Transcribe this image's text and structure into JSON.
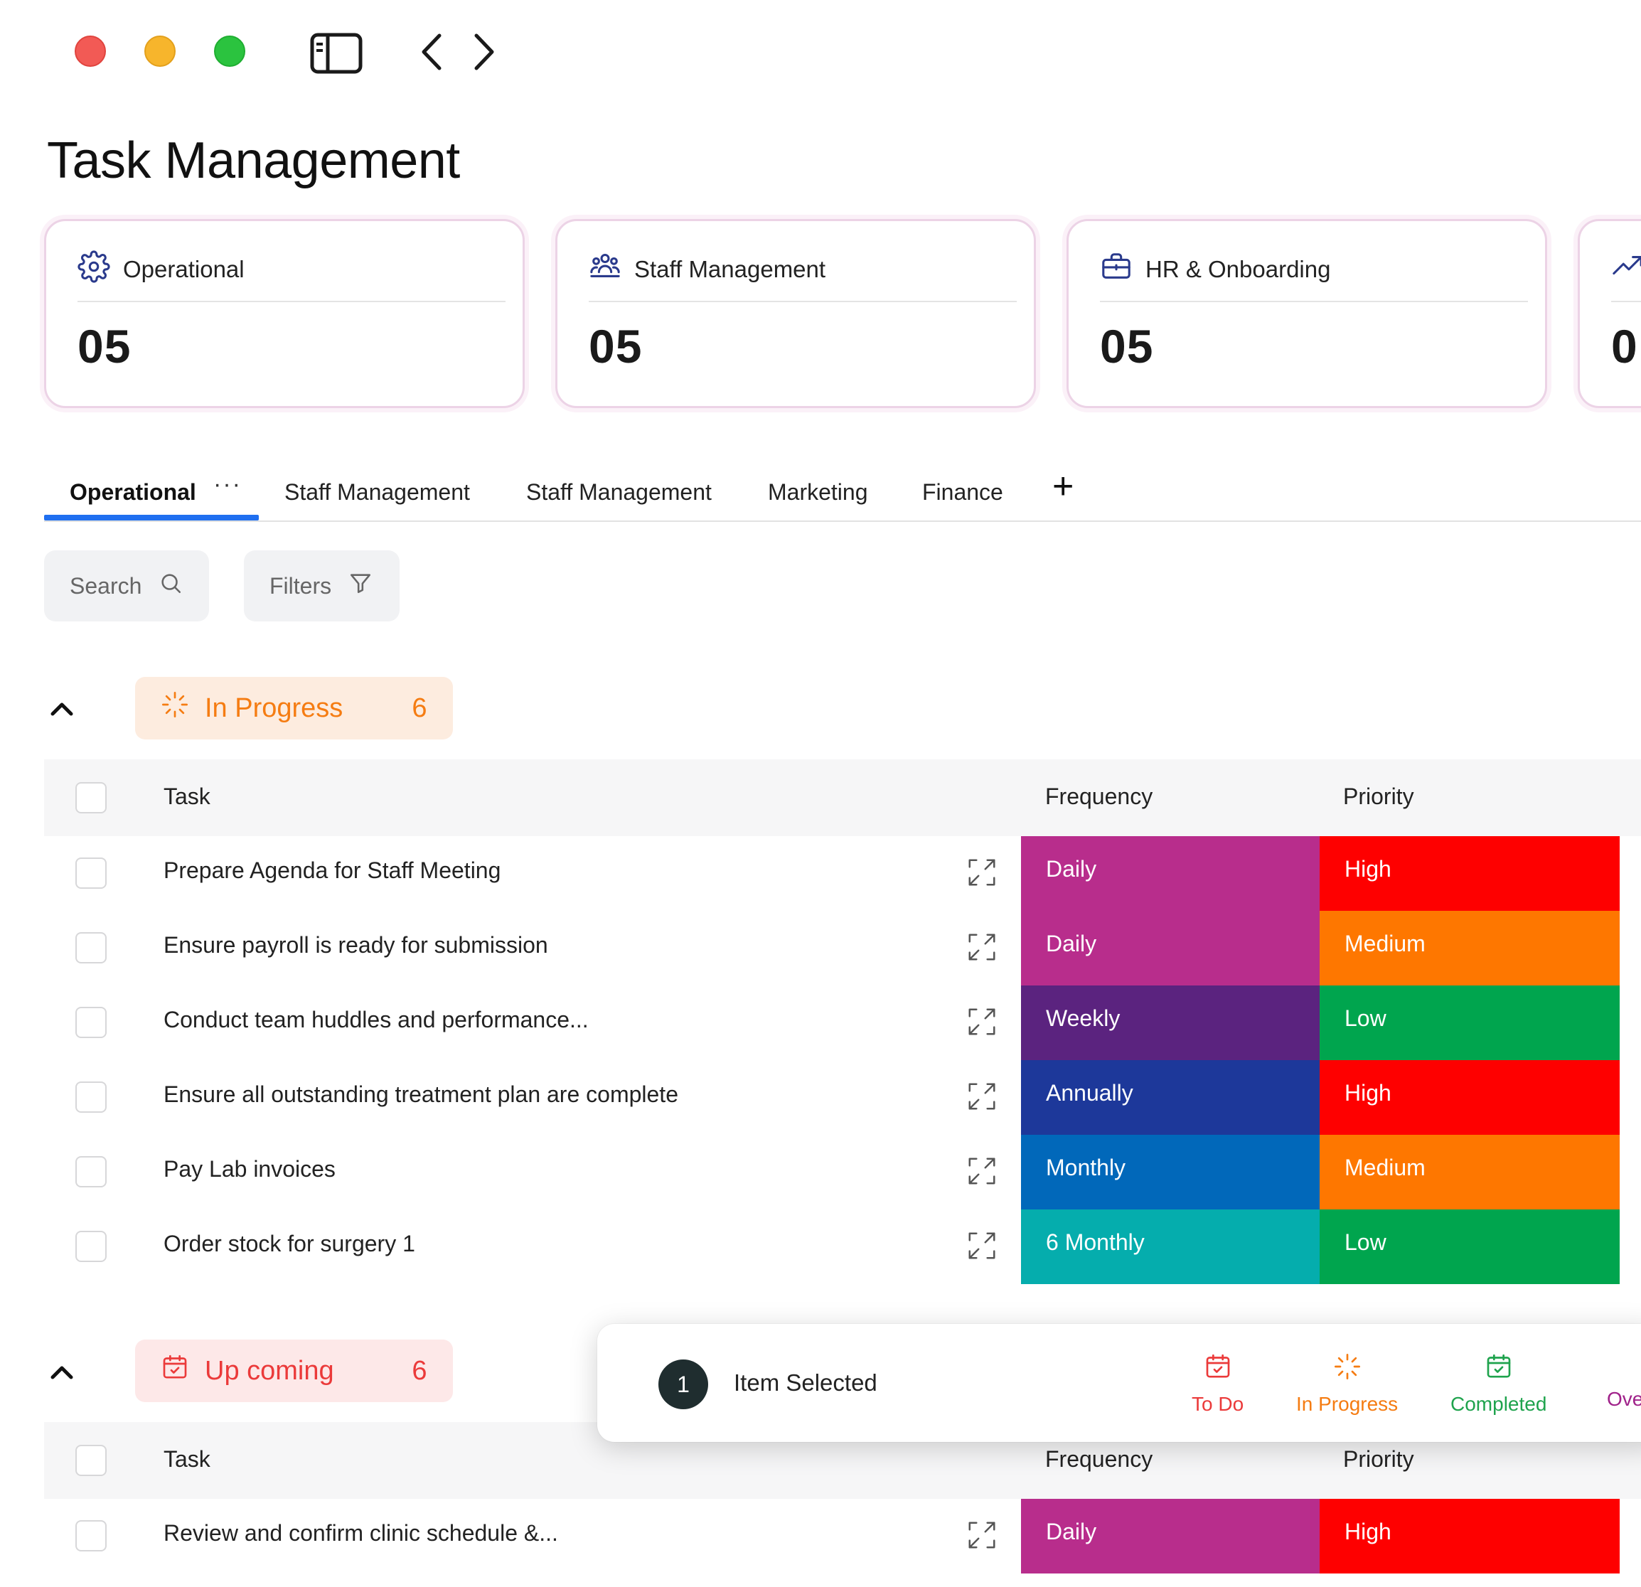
{
  "window": {
    "controls": [
      "close",
      "minimize",
      "maximize"
    ],
    "icons": [
      "sidebar-toggle-icon",
      "back-icon",
      "forward-icon"
    ]
  },
  "page": {
    "title": "Task Management"
  },
  "cards": [
    {
      "label": "Operational",
      "value": "05",
      "icon": "gear-icon"
    },
    {
      "label": "Staff Management",
      "value": "05",
      "icon": "people-icon"
    },
    {
      "label": "HR & Onboarding",
      "value": "05",
      "icon": "briefcase-icon"
    },
    {
      "label": "",
      "value": "0",
      "icon": "trending-up-icon"
    }
  ],
  "tabs": {
    "items": [
      "Operational",
      "Staff Management",
      "Staff Management",
      "Marketing",
      "Finance"
    ],
    "active_index": 0,
    "more": "···",
    "add": "+"
  },
  "controls": {
    "search": "Search",
    "filters": "Filters"
  },
  "columns": {
    "task": "Task",
    "frequency": "Frequency",
    "priority": "Priority"
  },
  "groups": [
    {
      "label": "In Progress",
      "count": "6",
      "rows": [
        {
          "task": "Prepare Agenda for Staff Meeting",
          "frequency": "Daily",
          "priority": "High"
        },
        {
          "task": "Ensure payroll is ready for submission",
          "frequency": "Daily",
          "priority": "Medium"
        },
        {
          "task": "Conduct team huddles and performance...",
          "frequency": "Weekly",
          "priority": "Low"
        },
        {
          "task": "Ensure all  outstanding treatment plan  are complete",
          "frequency": "Annually",
          "priority": "High"
        },
        {
          "task": "Pay Lab invoices",
          "frequency": "Monthly",
          "priority": "Medium"
        },
        {
          "task": "Order stock for surgery 1",
          "frequency": "6 Monthly",
          "priority": "Low"
        }
      ]
    },
    {
      "label": "Up coming",
      "count": "6",
      "rows": [
        {
          "task": "Review and confirm clinic schedule &...",
          "frequency": "Daily",
          "priority": "High"
        }
      ]
    }
  ],
  "selection_popup": {
    "count": "1",
    "label": "Item Selected",
    "actions": [
      "To Do",
      "In Progress",
      "Completed",
      "Ove"
    ]
  },
  "colors": {
    "frequency": {
      "Daily": "#b82d8c",
      "Weekly": "#5b237f",
      "Annually": "#1d389a",
      "Monthly": "#0168ba",
      "6 Monthly": "#05adad"
    },
    "priority": {
      "High": "#fe0000",
      "Medium": "#fe7700",
      "Low": "#00a54e"
    },
    "accent": "#1f6ff0",
    "in_progress": "#f57c12",
    "upcoming": "#eb3a3a",
    "completed": "#1fa34d",
    "overdue": "#a0228a"
  }
}
